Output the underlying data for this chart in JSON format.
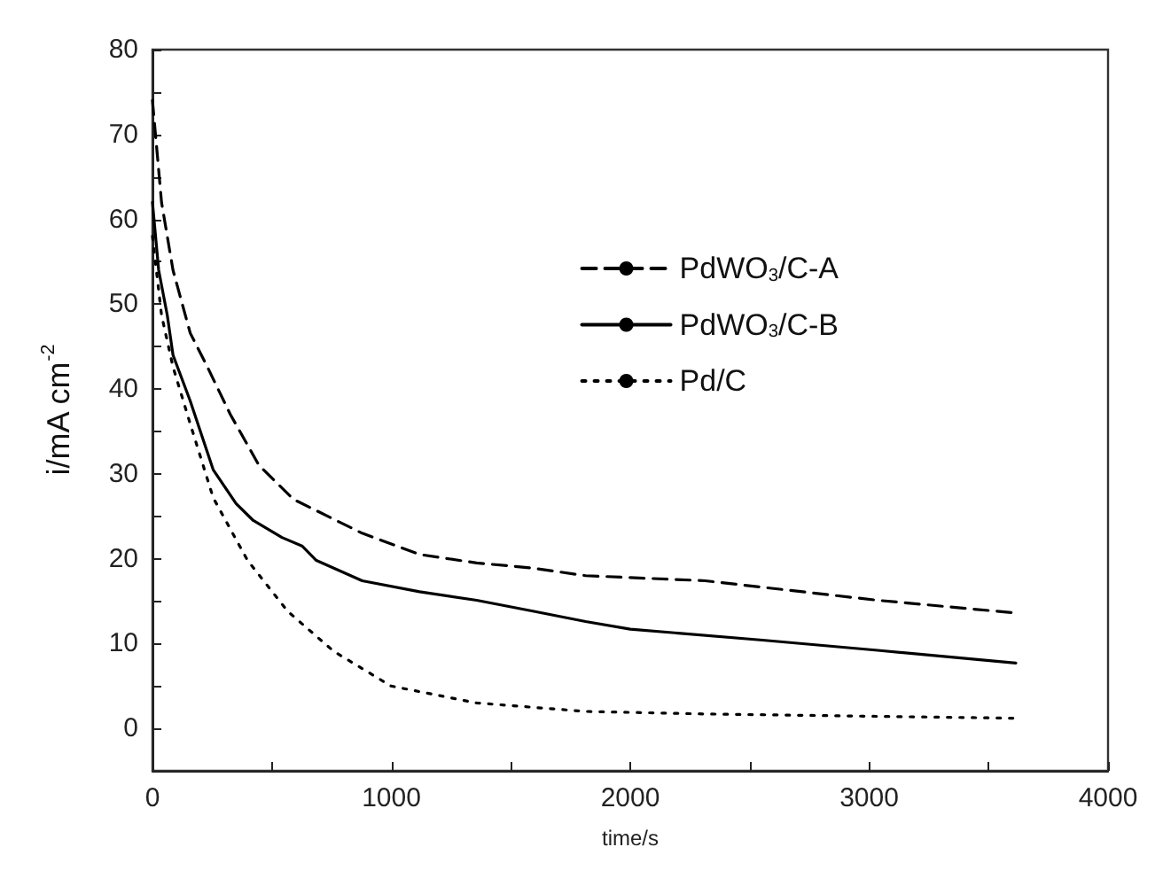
{
  "chart_data": {
    "type": "line",
    "xlabel": "time/s",
    "ylabel": "i/mA cm$^{-2}$",
    "xlim": [
      0,
      4000
    ],
    "ylim": [
      -5,
      80
    ],
    "xticks": [
      0,
      {
        "value": 500,
        "label": null
      },
      1000,
      {
        "value": 1500,
        "label": null
      },
      2000,
      {
        "value": 2500,
        "label": null
      },
      3000,
      {
        "value": 3500,
        "label": null
      },
      4000
    ],
    "yticks": [
      {
        "value": -5,
        "label": null
      },
      0,
      {
        "value": 5,
        "label": null
      },
      10,
      {
        "value": 15,
        "label": null
      },
      20,
      {
        "value": 25,
        "label": null
      },
      30,
      {
        "value": 35,
        "label": null
      },
      40,
      {
        "value": 45,
        "label": null
      },
      50,
      {
        "value": 55,
        "label": null
      },
      60,
      {
        "value": 65,
        "label": null
      },
      70,
      {
        "value": 75,
        "label": null
      },
      80
    ],
    "grid": false,
    "legend": "right",
    "marker": "none",
    "series": [
      {
        "name": "PdWO$_{3}$/C-A",
        "color": "#000000",
        "line_style": "dashed",
        "x": [
          0,
          38,
          86,
          158,
          230,
          326,
          446,
          590,
          770,
          878,
          1118,
          1357,
          1590,
          1813,
          2313,
          3036,
          3614
        ],
        "values": [
          74,
          62,
          54,
          46.6,
          42.6,
          37,
          31,
          27,
          24.5,
          23,
          20.5,
          19.5,
          18.9,
          18,
          17.4,
          15.1,
          13.6
        ]
      },
      {
        "name": "PdWO$_{3}$/C-B",
        "color": "#000000",
        "line_style": "solid",
        "x": [
          0,
          26,
          62,
          86,
          158,
          254,
          350,
          422,
          542,
          626,
          686,
          878,
          1118,
          1357,
          1597,
          1813,
          2000,
          2554,
          3036,
          3614
        ],
        "values": [
          62,
          54,
          48.7,
          44,
          38.6,
          30.5,
          26.5,
          24.5,
          22.5,
          21.5,
          19.8,
          17.4,
          16.1,
          15.1,
          13.8,
          12.6,
          11.7,
          10.4,
          9.2,
          7.7
        ]
      },
      {
        "name": "Pd/C",
        "color": "#000000",
        "line_style": "dotted",
        "x": [
          0,
          38,
          86,
          158,
          254,
          398,
          566,
          758,
          998,
          1357,
          1813,
          2313,
          3614
        ],
        "values": [
          58,
          48.7,
          42.6,
          35.9,
          27.2,
          19.8,
          13.8,
          9.1,
          5,
          3,
          2,
          1.7,
          1.2
        ]
      }
    ]
  }
}
